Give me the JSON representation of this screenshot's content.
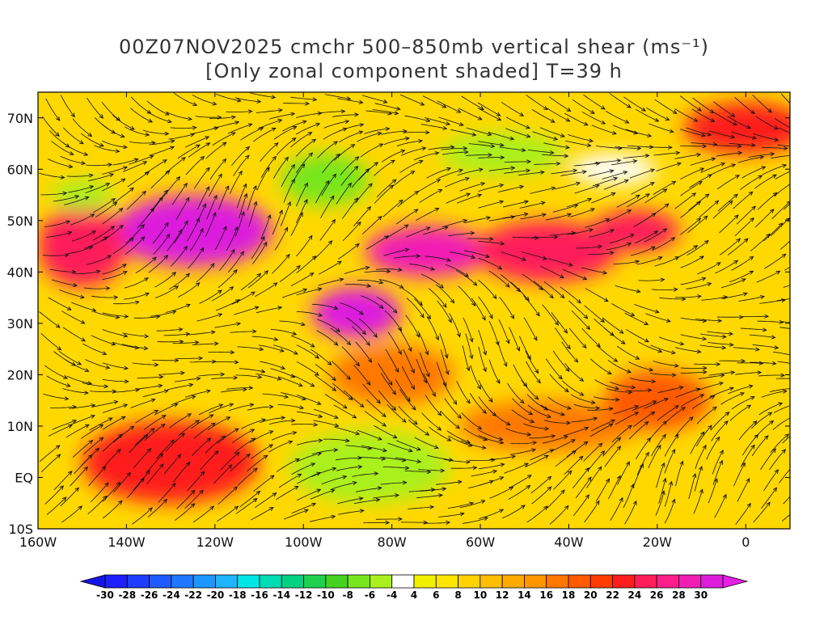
{
  "title": {
    "line1": "00Z07NOV2025 cmchr 500–850mb vertical shear (ms⁻¹)",
    "line2": "[Only zonal component shaded] T=39 h"
  },
  "lat_labels": [
    "70N",
    "60N",
    "50N",
    "40N",
    "30N",
    "20N",
    "10N",
    "EQ",
    "10S"
  ],
  "lat_values": [
    70,
    60,
    50,
    40,
    30,
    20,
    10,
    0,
    -10
  ],
  "lon_labels": [
    "160W",
    "140W",
    "120W",
    "100W",
    "80W",
    "60W",
    "40W",
    "20W",
    "0"
  ],
  "lon_values": [
    -160,
    -140,
    -120,
    -100,
    -80,
    -60,
    -40,
    -20,
    0
  ],
  "map_extent": {
    "lon_min": -160,
    "lon_max": 10,
    "lat_min": -10,
    "lat_max": 75
  },
  "colorbar": {
    "labels": [
      "-30",
      "-28",
      "-26",
      "-24",
      "-22",
      "-20",
      "-18",
      "-16",
      "-14",
      "-12",
      "-10",
      "-8",
      "-6",
      "-4",
      "4",
      "6",
      "8",
      "10",
      "12",
      "14",
      "16",
      "18",
      "20",
      "22",
      "24",
      "26",
      "28",
      "30"
    ],
    "colors": [
      "#1e1eff",
      "#1e3cff",
      "#1e5aff",
      "#1e78ff",
      "#1e96ff",
      "#1eb4ff",
      "#00e6e6",
      "#00dcb4",
      "#00d282",
      "#1ed250",
      "#46d21e",
      "#78e61e",
      "#aaf01e",
      "#ffffff",
      "#f0f000",
      "#ffe600",
      "#ffd200",
      "#ffbe00",
      "#ffaa00",
      "#ff9600",
      "#ff7800",
      "#ff5a00",
      "#ff3c00",
      "#ff1e1e",
      "#ff1e5a",
      "#ff1e8c",
      "#f01eb4",
      "#dc1edc"
    ],
    "low_color": "#1414e6",
    "high_color": "#e61ee6"
  },
  "shading_blobs": [
    {
      "lon": -125,
      "lat": 48,
      "rx": 18,
      "ry": 7,
      "value": 28
    },
    {
      "lon": -150,
      "lat": 45,
      "rx": 10,
      "ry": 8,
      "value": 22
    },
    {
      "lon": -72,
      "lat": 44,
      "rx": 14,
      "ry": 5,
      "value": 26
    },
    {
      "lon": -88,
      "lat": 32,
      "rx": 10,
      "ry": 5,
      "value": 28
    },
    {
      "lon": -45,
      "lat": 44,
      "rx": 16,
      "ry": 6,
      "value": 22
    },
    {
      "lon": -25,
      "lat": 48,
      "rx": 10,
      "ry": 4,
      "value": 22
    },
    {
      "lon": -130,
      "lat": 3,
      "rx": 20,
      "ry": 8,
      "value": 20
    },
    {
      "lon": -45,
      "lat": 10,
      "rx": 20,
      "ry": 5,
      "value": 14
    },
    {
      "lon": 0,
      "lat": 68,
      "rx": 14,
      "ry": 5,
      "value": 20
    },
    {
      "lon": -80,
      "lat": 20,
      "rx": 14,
      "ry": 6,
      "value": 14
    },
    {
      "lon": -20,
      "lat": 15,
      "rx": 12,
      "ry": 6,
      "value": 16
    },
    {
      "lon": -85,
      "lat": 2,
      "rx": 18,
      "ry": 7,
      "value": -8
    },
    {
      "lon": -95,
      "lat": 58,
      "rx": 10,
      "ry": 5,
      "value": -10
    },
    {
      "lon": -55,
      "lat": 63,
      "rx": 14,
      "ry": 4,
      "value": -8
    },
    {
      "lon": -150,
      "lat": 55,
      "rx": 7,
      "ry": 3,
      "value": -8
    },
    {
      "lon": -30,
      "lat": 60,
      "rx": 10,
      "ry": 3,
      "value": -6
    }
  ]
}
